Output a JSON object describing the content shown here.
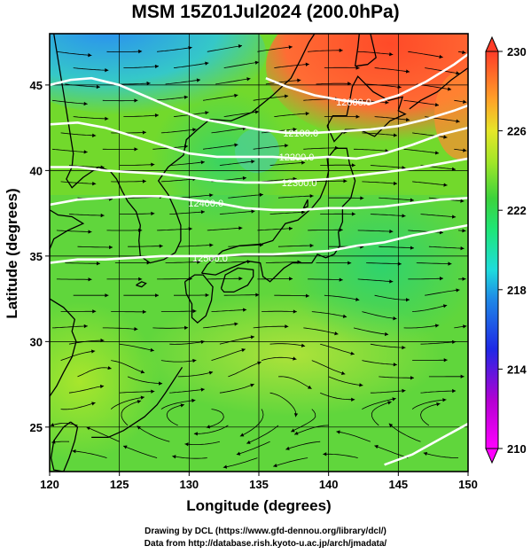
{
  "title": "MSM 15Z01Jul2024 (200.0hPa)",
  "chart_data": {
    "type": "map",
    "xlabel": "Longitude (degrees)",
    "ylabel": "Latitude  (degrees)",
    "xlim": [
      120,
      150
    ],
    "ylim": [
      22.4,
      48
    ],
    "xticks": [
      120,
      125,
      130,
      135,
      140,
      145,
      150
    ],
    "yticks": [
      25,
      30,
      35,
      40,
      45
    ],
    "colorbar": {
      "min": 210,
      "max": 230,
      "ticks": [
        210,
        214,
        218,
        222,
        226,
        230
      ]
    },
    "contours": [
      {
        "label": "12000.0",
        "points": [
          [
            135.5,
            45.4
          ],
          [
            137,
            44.9
          ],
          [
            139,
            44.4
          ],
          [
            141,
            44.1
          ],
          [
            143,
            43.9
          ],
          [
            145,
            44.4
          ],
          [
            147,
            45.2
          ],
          [
            149,
            46.2
          ],
          [
            150,
            46.8
          ]
        ],
        "label_at": [
          141.8,
          44.0
        ]
      },
      {
        "label": "12100.0",
        "points": [
          [
            120,
            45.0
          ],
          [
            121.5,
            45.3
          ],
          [
            123,
            45.4
          ],
          [
            125,
            45.0
          ],
          [
            127,
            44.3
          ],
          [
            129,
            43.6
          ],
          [
            131,
            43.0
          ],
          [
            133,
            42.7
          ],
          [
            135,
            42.4
          ],
          [
            137,
            42.2
          ],
          [
            139,
            42.2
          ],
          [
            141,
            42.3
          ],
          [
            143,
            42.4
          ],
          [
            145,
            42.6
          ],
          [
            147,
            43.0
          ],
          [
            149,
            43.5
          ],
          [
            150,
            43.8
          ]
        ],
        "label_at": [
          138.0,
          42.2
        ]
      },
      {
        "label": "12200.0",
        "points": [
          [
            120,
            42.7
          ],
          [
            122,
            42.8
          ],
          [
            124,
            42.5
          ],
          [
            126,
            42.0
          ],
          [
            128,
            41.5
          ],
          [
            130,
            41.0
          ],
          [
            132,
            40.8
          ],
          [
            134,
            40.8
          ],
          [
            136,
            40.8
          ],
          [
            138,
            40.7
          ],
          [
            140,
            40.8
          ],
          [
            142,
            40.7
          ],
          [
            144,
            41.0
          ],
          [
            146,
            41.5
          ],
          [
            148,
            42.1
          ],
          [
            150,
            42.5
          ]
        ],
        "label_at": [
          137.7,
          40.8
        ]
      },
      {
        "label": "12300.0",
        "points": [
          [
            120,
            40.2
          ],
          [
            122,
            40.2
          ],
          [
            124,
            40.0
          ],
          [
            126,
            39.9
          ],
          [
            128,
            39.8
          ],
          [
            130,
            39.6
          ],
          [
            132,
            39.4
          ],
          [
            134,
            39.3
          ],
          [
            136,
            39.3
          ],
          [
            138,
            39.4
          ],
          [
            140,
            39.5
          ],
          [
            142,
            39.7
          ],
          [
            144,
            39.9
          ],
          [
            146,
            40.1
          ],
          [
            148,
            40.4
          ],
          [
            150,
            40.7
          ]
        ],
        "label_at": [
          137.9,
          39.3
        ]
      },
      {
        "label": "12400.0",
        "points": [
          [
            120,
            38.0
          ],
          [
            122,
            38.3
          ],
          [
            124,
            38.4
          ],
          [
            126,
            38.5
          ],
          [
            128,
            38.5
          ],
          [
            130,
            38.3
          ],
          [
            132,
            38.1
          ],
          [
            134,
            37.8
          ],
          [
            136,
            37.7
          ],
          [
            138,
            37.7
          ],
          [
            140,
            37.8
          ],
          [
            142,
            37.8
          ],
          [
            144,
            37.9
          ],
          [
            146,
            38.1
          ],
          [
            148,
            38.3
          ],
          [
            150,
            38.4
          ]
        ],
        "label_at": [
          131.2,
          38.1
        ]
      },
      {
        "label": "12500.0",
        "points": [
          [
            120,
            34.6
          ],
          [
            122,
            34.8
          ],
          [
            124,
            34.8
          ],
          [
            126,
            34.9
          ],
          [
            128,
            35.0
          ],
          [
            130,
            35.0
          ],
          [
            132,
            35.0
          ],
          [
            134,
            35.1
          ],
          [
            136,
            35.1
          ],
          [
            138,
            35.2
          ],
          [
            140,
            35.3
          ],
          [
            142,
            35.6
          ],
          [
            144,
            35.8
          ],
          [
            146,
            36.2
          ],
          [
            148,
            36.5
          ],
          [
            150,
            36.8
          ]
        ],
        "label_at": [
          131.5,
          34.9
        ]
      },
      {
        "label": "",
        "points": [
          [
            144,
            22.8
          ],
          [
            146,
            23.4
          ],
          [
            148,
            24.3
          ],
          [
            150,
            25.2
          ]
        ]
      }
    ],
    "coastlines": [
      {
        "name": "china-korea-coast",
        "points": [
          [
            120.3,
            48
          ],
          [
            120.8,
            45.5
          ],
          [
            121.3,
            43
          ],
          [
            121.7,
            41
          ],
          [
            121.6,
            40.2
          ],
          [
            121.2,
            39.5
          ],
          [
            121.6,
            39.0
          ],
          [
            122.4,
            39.6
          ],
          [
            123.5,
            40.2
          ],
          [
            124.3,
            40.0
          ],
          [
            124.8,
            39.5
          ],
          [
            125.2,
            38.8
          ],
          [
            125.6,
            38.2
          ],
          [
            126.2,
            37.6
          ],
          [
            126.5,
            36.8
          ],
          [
            126.4,
            35.9
          ],
          [
            126.5,
            35.0
          ],
          [
            127.2,
            34.6
          ],
          [
            128.2,
            34.8
          ],
          [
            129.0,
            35.2
          ],
          [
            129.4,
            35.9
          ],
          [
            129.4,
            36.8
          ],
          [
            129.0,
            37.7
          ],
          [
            128.5,
            38.6
          ],
          [
            127.8,
            39.4
          ],
          [
            128.5,
            40.2
          ],
          [
            129.6,
            40.9
          ],
          [
            129.8,
            41.8
          ],
          [
            130.6,
            42.4
          ],
          [
            131.5,
            43.0
          ],
          [
            133.0,
            42.9
          ],
          [
            134.5,
            43.4
          ],
          [
            136.0,
            44.4
          ],
          [
            137.3,
            45.4
          ],
          [
            138.0,
            46.5
          ],
          [
            138.6,
            47.5
          ],
          [
            139.0,
            48
          ]
        ]
      },
      {
        "name": "china-south-coast",
        "points": [
          [
            120,
            37.7
          ],
          [
            120.6,
            37.4
          ],
          [
            121.6,
            37.3
          ],
          [
            122.4,
            36.9
          ],
          [
            121.3,
            36.5
          ],
          [
            120.3,
            36.0
          ],
          [
            120.0,
            35.4
          ]
        ]
      },
      {
        "name": "china-east-coast",
        "points": [
          [
            120,
            32.5
          ],
          [
            121.0,
            32.0
          ],
          [
            121.8,
            31.3
          ],
          [
            121.6,
            30.6
          ],
          [
            121.9,
            30.0
          ],
          [
            121.6,
            29.1
          ],
          [
            121.0,
            28.2
          ],
          [
            120.5,
            27.4
          ],
          [
            120.0,
            26.8
          ]
        ]
      },
      {
        "name": "taiwan",
        "points": [
          [
            121.5,
            25.3
          ],
          [
            122.0,
            25.0
          ],
          [
            121.8,
            24.2
          ],
          [
            121.4,
            23.2
          ],
          [
            121.0,
            22.4
          ],
          [
            120.3,
            22.5
          ],
          [
            120.1,
            23.2
          ],
          [
            120.3,
            24.2
          ],
          [
            121.0,
            25.0
          ],
          [
            121.5,
            25.3
          ]
        ]
      },
      {
        "name": "kyushu",
        "points": [
          [
            129.7,
            33.5
          ],
          [
            130.4,
            33.9
          ],
          [
            131.0,
            33.9
          ],
          [
            131.7,
            33.2
          ],
          [
            131.6,
            32.4
          ],
          [
            131.2,
            31.5
          ],
          [
            130.6,
            31.1
          ],
          [
            130.2,
            31.4
          ],
          [
            130.2,
            32.2
          ],
          [
            129.8,
            32.8
          ],
          [
            129.7,
            33.5
          ]
        ]
      },
      {
        "name": "shikoku",
        "points": [
          [
            132.3,
            33.1
          ],
          [
            132.6,
            33.9
          ],
          [
            133.5,
            34.3
          ],
          [
            134.6,
            34.2
          ],
          [
            134.6,
            33.8
          ],
          [
            134.2,
            33.3
          ],
          [
            133.2,
            32.9
          ],
          [
            132.5,
            32.9
          ],
          [
            132.3,
            33.1
          ]
        ]
      },
      {
        "name": "honshu",
        "points": [
          [
            130.9,
            34.0
          ],
          [
            131.3,
            34.5
          ],
          [
            132.4,
            35.3
          ],
          [
            133.6,
            35.6
          ],
          [
            135.2,
            35.7
          ],
          [
            136.0,
            35.9
          ],
          [
            136.9,
            36.9
          ],
          [
            137.8,
            37.1
          ],
          [
            138.8,
            37.8
          ],
          [
            139.4,
            38.4
          ],
          [
            139.8,
            39.2
          ],
          [
            140.0,
            40.0
          ],
          [
            139.9,
            40.7
          ],
          [
            140.5,
            41.3
          ],
          [
            141.3,
            41.3
          ],
          [
            141.5,
            40.4
          ],
          [
            141.9,
            39.4
          ],
          [
            141.6,
            38.4
          ],
          [
            141.0,
            37.9
          ],
          [
            141.0,
            37.0
          ],
          [
            140.7,
            36.4
          ],
          [
            140.8,
            35.6
          ],
          [
            140.4,
            35.1
          ],
          [
            139.8,
            34.9
          ],
          [
            139.2,
            35.1
          ],
          [
            138.8,
            34.6
          ],
          [
            138.2,
            34.6
          ],
          [
            137.4,
            34.6
          ],
          [
            136.8,
            34.3
          ],
          [
            136.3,
            33.9
          ],
          [
            135.8,
            33.5
          ],
          [
            135.3,
            33.8
          ],
          [
            135.1,
            34.6
          ],
          [
            134.2,
            34.7
          ],
          [
            133.0,
            34.3
          ],
          [
            131.9,
            33.9
          ],
          [
            130.9,
            34.0
          ]
        ]
      },
      {
        "name": "hokkaido",
        "points": [
          [
            139.9,
            42.6
          ],
          [
            140.3,
            43.2
          ],
          [
            141.3,
            43.2
          ],
          [
            141.5,
            44.0
          ],
          [
            141.7,
            44.9
          ],
          [
            142.1,
            45.5
          ],
          [
            143.2,
            44.6
          ],
          [
            144.3,
            44.1
          ],
          [
            145.3,
            44.3
          ],
          [
            145.0,
            43.5
          ],
          [
            145.5,
            43.3
          ],
          [
            144.4,
            42.9
          ],
          [
            143.3,
            42.0
          ],
          [
            142.2,
            42.4
          ],
          [
            141.2,
            42.4
          ],
          [
            140.4,
            41.7
          ],
          [
            139.9,
            42.6
          ]
        ]
      },
      {
        "name": "sakhalin",
        "points": [
          [
            141.9,
            46.1
          ],
          [
            142.1,
            47.2
          ],
          [
            142.2,
            48
          ],
          [
            143.0,
            48
          ],
          [
            143.4,
            46.6
          ],
          [
            142.8,
            46.2
          ],
          [
            141.9,
            46.1
          ]
        ]
      },
      {
        "name": "kurils",
        "points": [
          [
            145.8,
            43.6
          ],
          [
            146.6,
            44.1
          ],
          [
            147.8,
            44.6
          ],
          [
            148.8,
            45.3
          ],
          [
            150.0,
            46.0
          ]
        ]
      },
      {
        "name": "sado",
        "points": [
          [
            138.2,
            37.8
          ],
          [
            138.5,
            38.3
          ],
          [
            138.5,
            37.9
          ],
          [
            138.2,
            37.8
          ]
        ]
      },
      {
        "name": "nansei-islands",
        "points": [
          [
            129.5,
            28.5
          ],
          [
            128.3,
            27.0
          ],
          [
            127.7,
            26.3
          ],
          [
            126.8,
            25.6
          ],
          [
            125.3,
            24.8
          ],
          [
            124.2,
            24.4
          ],
          [
            123.0,
            24.4
          ]
        ]
      },
      {
        "name": "jeju",
        "points": [
          [
            126.2,
            33.3
          ],
          [
            126.6,
            33.5
          ],
          [
            126.9,
            33.4
          ],
          [
            126.6,
            33.2
          ],
          [
            126.2,
            33.3
          ]
        ]
      }
    ]
  },
  "credits": {
    "line1": "Drawing by DCL (https://www.gfd-dennou.org/library/dcl/)",
    "line2": "Data from http://database.rish.kyoto-u.ac.jp/arch/jmadata/"
  }
}
